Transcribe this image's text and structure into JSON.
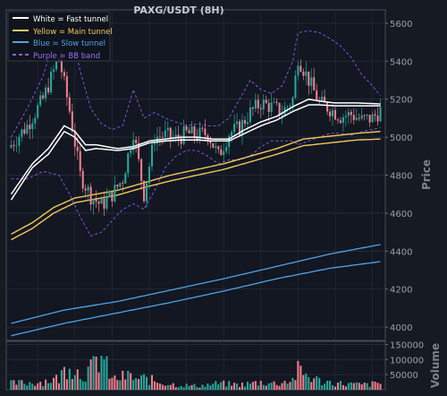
{
  "chart_data": {
    "type": "candlestick",
    "title": "PAXG/USDT (8H)",
    "price_axis": {
      "label": "Price",
      "ylim": [
        3930,
        5670
      ],
      "ticks": [
        4000,
        4200,
        4400,
        4600,
        4800,
        5000,
        5200,
        5400,
        5600
      ],
      "side": "right"
    },
    "volume_axis": {
      "label": "Volume",
      "ylim": [
        0,
        160000
      ],
      "ticks": [
        50000,
        100000,
        150000
      ],
      "tick_labels": [
        "50000",
        "100000",
        "150000"
      ],
      "side": "right"
    },
    "grid": true,
    "legend": {
      "position": "top-left",
      "entries": [
        {
          "label": "White = Fast tunnel",
          "color": "#ffffff",
          "style": "solid"
        },
        {
          "label": "Yellow = Main tunnel",
          "color": "#f2c85b",
          "style": "solid"
        },
        {
          "label": "Blue = Slow tunnel",
          "color": "#4ea3e8",
          "style": "solid"
        },
        {
          "label": "Purple = BB band",
          "color": "#8e5cf0",
          "style": "dashed"
        }
      ]
    },
    "colors": {
      "up": "#26a69a",
      "down": "#ef7f8b"
    },
    "n_bars": 140,
    "anchors": {
      "close": [
        [
          0,
          4960
        ],
        [
          6,
          5060
        ],
        [
          12,
          5200
        ],
        [
          18,
          5420
        ],
        [
          22,
          5140
        ],
        [
          26,
          4800
        ],
        [
          30,
          4690
        ],
        [
          34,
          4640
        ],
        [
          38,
          4700
        ],
        [
          42,
          4780
        ],
        [
          46,
          5030
        ],
        [
          50,
          4700
        ],
        [
          54,
          5000
        ],
        [
          58,
          5010
        ],
        [
          62,
          4990
        ],
        [
          66,
          5020
        ],
        [
          70,
          5010
        ],
        [
          74,
          5020
        ],
        [
          78,
          4900
        ],
        [
          82,
          5020
        ],
        [
          86,
          5050
        ],
        [
          90,
          5130
        ],
        [
          94,
          5180
        ],
        [
          98,
          5160
        ],
        [
          102,
          5130
        ],
        [
          106,
          5200
        ],
        [
          108,
          5420
        ],
        [
          112,
          5300
        ],
        [
          116,
          5180
        ],
        [
          120,
          5150
        ],
        [
          124,
          5110
        ],
        [
          128,
          5120
        ],
        [
          132,
          5090
        ],
        [
          136,
          5100
        ],
        [
          139,
          5140
        ]
      ],
      "fast_upper": [
        [
          0,
          4700
        ],
        [
          8,
          4860
        ],
        [
          14,
          4940
        ],
        [
          20,
          5060
        ],
        [
          24,
          5030
        ],
        [
          28,
          4960
        ],
        [
          32,
          4960
        ],
        [
          36,
          4950
        ],
        [
          40,
          4940
        ],
        [
          46,
          4950
        ],
        [
          52,
          4980
        ],
        [
          58,
          4990
        ],
        [
          64,
          5000
        ],
        [
          70,
          5000
        ],
        [
          76,
          4990
        ],
        [
          82,
          4990
        ],
        [
          88,
          5040
        ],
        [
          94,
          5080
        ],
        [
          100,
          5110
        ],
        [
          106,
          5160
        ],
        [
          112,
          5200
        ],
        [
          116,
          5190
        ],
        [
          122,
          5180
        ],
        [
          130,
          5180
        ],
        [
          139,
          5175
        ]
      ],
      "fast_lower": [
        [
          0,
          4670
        ],
        [
          8,
          4840
        ],
        [
          14,
          4910
        ],
        [
          20,
          5030
        ],
        [
          24,
          5000
        ],
        [
          28,
          4930
        ],
        [
          32,
          4940
        ],
        [
          36,
          4935
        ],
        [
          40,
          4930
        ],
        [
          46,
          4940
        ],
        [
          52,
          4970
        ],
        [
          58,
          4980
        ],
        [
          64,
          4985
        ],
        [
          70,
          4985
        ],
        [
          76,
          4980
        ],
        [
          82,
          4980
        ],
        [
          88,
          5020
        ],
        [
          94,
          5060
        ],
        [
          100,
          5090
        ],
        [
          106,
          5135
        ],
        [
          112,
          5170
        ],
        [
          116,
          5170
        ],
        [
          122,
          5165
        ],
        [
          130,
          5165
        ],
        [
          139,
          5165
        ]
      ],
      "main_upper": [
        [
          0,
          4490
        ],
        [
          8,
          4550
        ],
        [
          16,
          4630
        ],
        [
          24,
          4680
        ],
        [
          32,
          4700
        ],
        [
          40,
          4720
        ],
        [
          50,
          4760
        ],
        [
          60,
          4800
        ],
        [
          70,
          4830
        ],
        [
          80,
          4860
        ],
        [
          90,
          4900
        ],
        [
          100,
          4940
        ],
        [
          110,
          4990
        ],
        [
          120,
          5005
        ],
        [
          130,
          5020
        ],
        [
          139,
          5030
        ]
      ],
      "main_lower": [
        [
          0,
          4460
        ],
        [
          8,
          4520
        ],
        [
          16,
          4600
        ],
        [
          24,
          4655
        ],
        [
          32,
          4675
        ],
        [
          40,
          4695
        ],
        [
          50,
          4735
        ],
        [
          60,
          4770
        ],
        [
          70,
          4800
        ],
        [
          80,
          4830
        ],
        [
          90,
          4870
        ],
        [
          100,
          4910
        ],
        [
          110,
          4955
        ],
        [
          120,
          4970
        ],
        [
          130,
          4985
        ],
        [
          139,
          4990
        ]
      ],
      "slow_upper": [
        [
          0,
          4020
        ],
        [
          20,
          4090
        ],
        [
          40,
          4135
        ],
        [
          60,
          4195
        ],
        [
          80,
          4255
        ],
        [
          100,
          4320
        ],
        [
          120,
          4385
        ],
        [
          139,
          4435
        ]
      ],
      "slow_lower": [
        [
          0,
          3955
        ],
        [
          20,
          4020
        ],
        [
          40,
          4075
        ],
        [
          60,
          4130
        ],
        [
          80,
          4190
        ],
        [
          100,
          4255
        ],
        [
          120,
          4310
        ],
        [
          139,
          4345
        ]
      ],
      "bb_upper": [
        [
          0,
          5000
        ],
        [
          6,
          5150
        ],
        [
          12,
          5320
        ],
        [
          18,
          5600
        ],
        [
          22,
          5580
        ],
        [
          26,
          5350
        ],
        [
          30,
          5150
        ],
        [
          34,
          5070
        ],
        [
          38,
          5040
        ],
        [
          42,
          5060
        ],
        [
          46,
          5250
        ],
        [
          50,
          5100
        ],
        [
          54,
          5130
        ],
        [
          58,
          5100
        ],
        [
          62,
          5080
        ],
        [
          66,
          5060
        ],
        [
          70,
          5070
        ],
        [
          74,
          5060
        ],
        [
          78,
          5060
        ],
        [
          82,
          5100
        ],
        [
          86,
          5200
        ],
        [
          90,
          5300
        ],
        [
          94,
          5250
        ],
        [
          98,
          5230
        ],
        [
          102,
          5270
        ],
        [
          106,
          5400
        ],
        [
          108,
          5550
        ],
        [
          112,
          5560
        ],
        [
          116,
          5550
        ],
        [
          120,
          5520
        ],
        [
          124,
          5480
        ],
        [
          128,
          5420
        ],
        [
          132,
          5330
        ],
        [
          136,
          5270
        ],
        [
          139,
          5220
        ]
      ],
      "bb_lower": [
        [
          0,
          4780
        ],
        [
          6,
          4780
        ],
        [
          12,
          4820
        ],
        [
          18,
          4800
        ],
        [
          22,
          4700
        ],
        [
          26,
          4580
        ],
        [
          30,
          4480
        ],
        [
          34,
          4500
        ],
        [
          38,
          4560
        ],
        [
          42,
          4620
        ],
        [
          46,
          4650
        ],
        [
          50,
          4620
        ],
        [
          54,
          4720
        ],
        [
          58,
          4840
        ],
        [
          62,
          4900
        ],
        [
          66,
          4930
        ],
        [
          70,
          4930
        ],
        [
          74,
          4900
        ],
        [
          78,
          4860
        ],
        [
          82,
          4880
        ],
        [
          86,
          4880
        ],
        [
          90,
          4900
        ],
        [
          94,
          4950
        ],
        [
          98,
          4980
        ],
        [
          102,
          4980
        ],
        [
          106,
          4980
        ],
        [
          108,
          4960
        ],
        [
          112,
          4980
        ],
        [
          116,
          5000
        ],
        [
          120,
          5020
        ],
        [
          124,
          5020
        ],
        [
          128,
          5010
        ],
        [
          132,
          5030
        ],
        [
          136,
          5040
        ],
        [
          139,
          5050
        ]
      ],
      "volume": [
        [
          0,
          25000
        ],
        [
          10,
          30000
        ],
        [
          18,
          45000
        ],
        [
          22,
          110000
        ],
        [
          26,
          60000
        ],
        [
          30,
          80000
        ],
        [
          34,
          135000
        ],
        [
          38,
          40000
        ],
        [
          44,
          55000
        ],
        [
          48,
          40000
        ],
        [
          50,
          45000
        ],
        [
          56,
          30000
        ],
        [
          62,
          20000
        ],
        [
          70,
          15000
        ],
        [
          78,
          25000
        ],
        [
          86,
          20000
        ],
        [
          94,
          30000
        ],
        [
          100,
          25000
        ],
        [
          106,
          40000
        ],
        [
          108,
          75000
        ],
        [
          112,
          55000
        ],
        [
          116,
          35000
        ],
        [
          124,
          25000
        ],
        [
          132,
          20000
        ],
        [
          139,
          25000
        ]
      ]
    }
  }
}
